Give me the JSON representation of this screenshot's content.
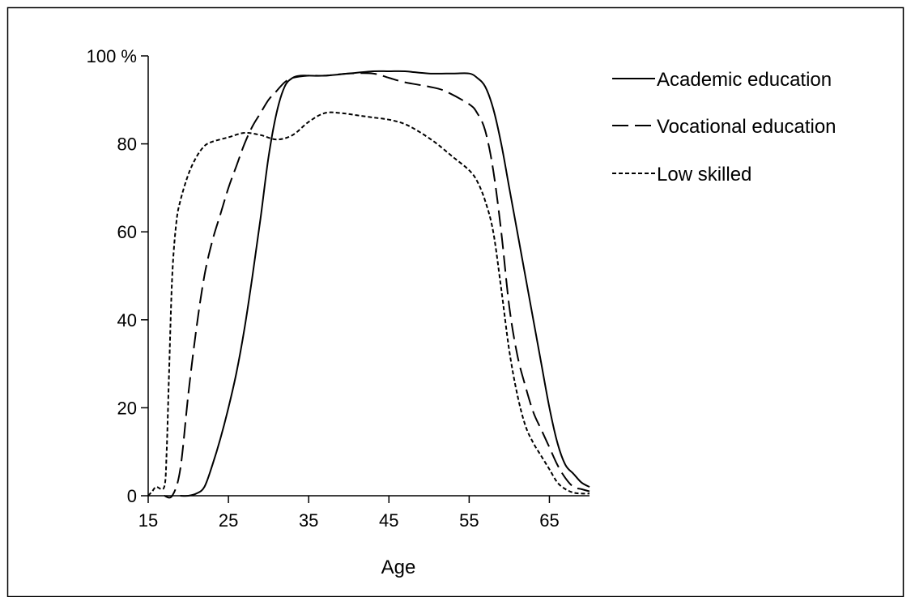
{
  "chart_data": {
    "type": "line",
    "xlabel": "Age",
    "ylabel": "",
    "xlim": [
      15,
      70
    ],
    "ylim": [
      0,
      100
    ],
    "x_ticks": [
      15,
      25,
      35,
      45,
      55,
      65
    ],
    "y_ticks": [
      0,
      20,
      40,
      60,
      80,
      100
    ],
    "y_tick_labels": [
      "0",
      "20",
      "40",
      "60",
      "80",
      "100 %"
    ],
    "grid": false,
    "legend_position": "top-right, outside plot",
    "series": [
      {
        "name": "Academic education",
        "dash": "solid",
        "x": [
          19,
          20,
          21,
          22,
          23,
          24,
          25,
          26,
          27,
          28,
          29,
          30,
          31,
          32,
          33,
          34,
          35,
          37,
          40,
          43,
          45,
          47,
          50,
          53,
          55,
          56,
          57,
          58,
          59,
          60,
          61,
          62,
          63,
          64,
          65,
          66,
          67,
          68,
          69,
          70
        ],
        "y": [
          0,
          0,
          0.5,
          2,
          7,
          13,
          20,
          28,
          38,
          50,
          63,
          77,
          87,
          93,
          95,
          95.5,
          95.5,
          95.5,
          96,
          96.5,
          96.5,
          96.5,
          96,
          96,
          96,
          95,
          93,
          88,
          80,
          70,
          60,
          50,
          40,
          30,
          20,
          12,
          7,
          5,
          3,
          2
        ]
      },
      {
        "name": "Vocational education",
        "dash": "long-dash",
        "x": [
          17,
          18,
          19,
          20,
          21,
          22,
          23,
          24,
          25,
          26,
          27,
          28,
          29,
          30,
          31,
          32,
          33,
          35,
          37,
          40,
          43,
          45,
          47,
          50,
          52,
          55,
          56,
          57,
          58,
          59,
          60,
          61,
          62,
          63,
          64,
          65,
          66,
          67,
          68,
          69,
          70
        ],
        "y": [
          0,
          0,
          6,
          23,
          38,
          50,
          58,
          64,
          70,
          75,
          80,
          84,
          87,
          90,
          92,
          94,
          95,
          95.5,
          95.5,
          96,
          96,
          95,
          94,
          93,
          92,
          89,
          87,
          83,
          74,
          60,
          43,
          32,
          25,
          19,
          15,
          11,
          7,
          4,
          2,
          1.5,
          1
        ]
      },
      {
        "name": "Low skilled",
        "dash": "short-dash",
        "x": [
          15,
          15.5,
          16,
          17,
          17.3,
          17.6,
          18,
          18.5,
          19,
          20,
          21,
          22,
          23,
          25,
          27,
          29,
          31,
          33,
          35,
          37,
          39,
          41,
          43,
          45,
          47,
          49,
          51,
          53,
          55,
          56,
          57,
          58,
          59,
          60,
          61,
          62,
          63,
          64,
          65,
          66,
          67,
          68,
          69,
          70
        ],
        "y": [
          0,
          1,
          2,
          2,
          10,
          28,
          50,
          62,
          67,
          73,
          77,
          79.5,
          80.5,
          81.5,
          82.5,
          82,
          81,
          82,
          85,
          87,
          87,
          86.5,
          86,
          85.5,
          84.5,
          82.5,
          80,
          77,
          74,
          71.5,
          67,
          60,
          47,
          33,
          23,
          16,
          12,
          9,
          6,
          3,
          1.5,
          0.7,
          0.5,
          0.5
        ]
      }
    ]
  }
}
